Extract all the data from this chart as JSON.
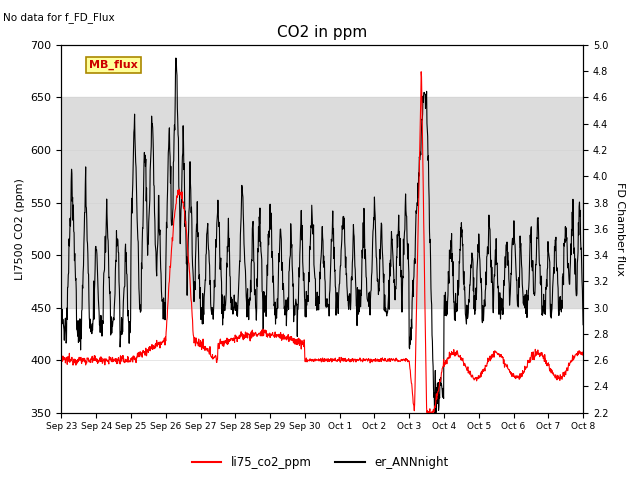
{
  "title": "CO2 in ppm",
  "ylabel_left": "LI7500 CO2 (ppm)",
  "ylabel_right": "FD Chamber flux",
  "ylim_left": [
    350,
    700
  ],
  "ylim_right": [
    2.2,
    5.0
  ],
  "no_data_text": "No data for f_FD_Flux",
  "mb_flux_label": "MB_flux",
  "legend_labels": [
    "li75_co2_ppm",
    "er_ANNnight"
  ],
  "red_color": "#FF0000",
  "black_color": "#000000",
  "shaded_ymin": 450,
  "shaded_ymax": 650,
  "shaded_color": "#DCDCDC",
  "mb_flux_bg": "#FFFF99",
  "mb_flux_border": "#CC0000",
  "xtick_labels": [
    "Sep 23",
    "Sep 24",
    "Sep 25",
    "Sep 26",
    "Sep 27",
    "Sep 28",
    "Sep 29",
    "Sep 30",
    "Oct 1",
    "Oct 2",
    "Oct 3",
    "Oct 4",
    "Oct 5",
    "Oct 6",
    "Oct 7",
    "Oct 8"
  ],
  "xtick_positions": [
    0,
    1,
    2,
    3,
    4,
    5,
    6,
    7,
    8,
    9,
    10,
    11,
    12,
    13,
    14,
    15
  ],
  "xlim": [
    0,
    15
  ],
  "yticks_left": [
    350,
    400,
    450,
    500,
    550,
    600,
    650,
    700
  ],
  "yticks_right": [
    2.2,
    2.4,
    2.6,
    2.8,
    3.0,
    3.2,
    3.4,
    3.6,
    3.8,
    4.0,
    4.2,
    4.4,
    4.6,
    4.8,
    5.0
  ]
}
